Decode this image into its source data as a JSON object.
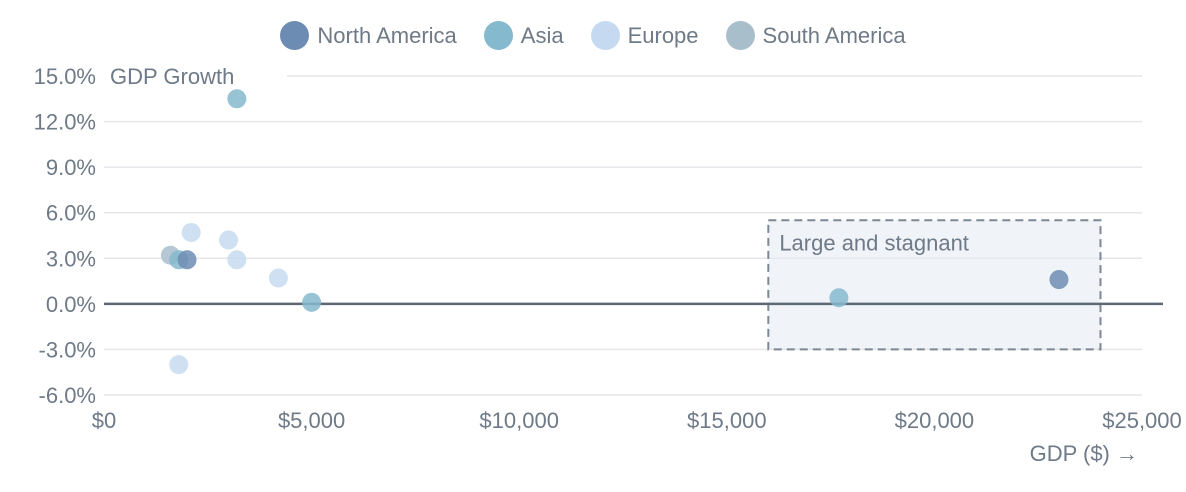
{
  "colors": {
    "text": "#6e7a87",
    "grid": "#e4e6e9",
    "zero_line": "#5c6875",
    "annotation_border": "#7d8894",
    "annotation_fill": "#e4e9f1"
  },
  "legend": {
    "items": [
      {
        "label": "North America",
        "color": "#6d8cb3"
      },
      {
        "label": "Asia",
        "color": "#85b9ce"
      },
      {
        "label": "Europe",
        "color": "#c5daf0"
      },
      {
        "label": "South America",
        "color": "#a9becb"
      }
    ]
  },
  "chart_data": {
    "type": "scatter",
    "title": "",
    "xlabel": "GDP ($) →",
    "ylabel": "GDP Growth",
    "x_axis": {
      "ticks": [
        "$0",
        "$5,000",
        "$10,000",
        "$15,000",
        "$20,000",
        "$25,000"
      ],
      "values": [
        0,
        5000,
        10000,
        15000,
        20000,
        25000
      ],
      "range": [
        0,
        25000
      ]
    },
    "y_axis": {
      "ticks": [
        "15.0%",
        "12.0%",
        "9.0%",
        "6.0%",
        "3.0%",
        "0.0%",
        "-3.0%",
        "-6.0%"
      ],
      "values": [
        15,
        12,
        9,
        6,
        3,
        0,
        -3,
        -6
      ],
      "range": [
        -6,
        15
      ],
      "zero_baseline": true
    },
    "grid": true,
    "legend_position": "top",
    "series": [
      {
        "name": "North America",
        "color": "#6d8cb3",
        "points": [
          {
            "gdp": 2000,
            "growth": 2.9
          },
          {
            "gdp": 23000,
            "growth": 1.6
          }
        ]
      },
      {
        "name": "Asia",
        "color": "#85b9ce",
        "points": [
          {
            "gdp": 3200,
            "growth": 13.5
          },
          {
            "gdp": 1800,
            "growth": 2.9
          },
          {
            "gdp": 5000,
            "growth": 0.1
          },
          {
            "gdp": 17700,
            "growth": 0.4
          }
        ]
      },
      {
        "name": "Europe",
        "color": "#c5daf0",
        "points": [
          {
            "gdp": 2100,
            "growth": 4.7
          },
          {
            "gdp": 3000,
            "growth": 4.2
          },
          {
            "gdp": 3200,
            "growth": 2.9
          },
          {
            "gdp": 4200,
            "growth": 1.7
          },
          {
            "gdp": 1800,
            "growth": -4.0
          }
        ]
      },
      {
        "name": "South America",
        "color": "#a9becb",
        "points": [
          {
            "gdp": 1600,
            "growth": 3.2
          }
        ]
      }
    ],
    "annotation": {
      "label": "Large and stagnant",
      "x_range": [
        16000,
        24000
      ],
      "y_range": [
        -3,
        5.5
      ]
    }
  }
}
